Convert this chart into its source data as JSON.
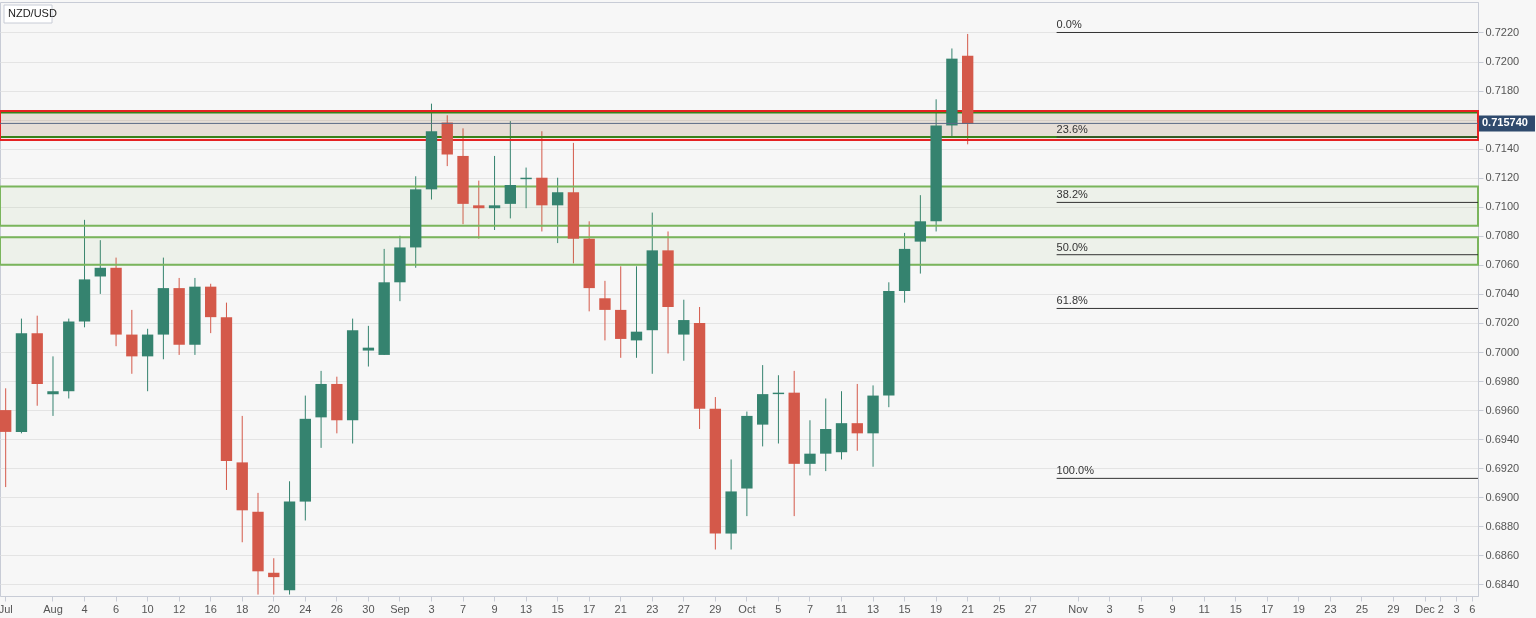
{
  "chart_data": {
    "type": "candlestick",
    "title": "NZD/USD",
    "categories": [
      "Jul",
      null,
      null,
      "Aug",
      null,
      "4",
      null,
      "6",
      null,
      "10",
      null,
      "12",
      null,
      "16",
      null,
      "18",
      null,
      "20",
      null,
      "24",
      null,
      "26",
      null,
      "30",
      null,
      "Sep",
      null,
      "3",
      null,
      "7",
      null,
      "9",
      null,
      "13",
      null,
      "15",
      null,
      "17",
      null,
      "21",
      null,
      "23",
      null,
      "27",
      null,
      "29",
      null,
      "Oct",
      null,
      "5",
      null,
      "7",
      null,
      "11",
      null,
      "13",
      null,
      "15",
      null,
      "19",
      null,
      "21",
      null,
      "25",
      null,
      "27",
      null,
      null,
      "Nov",
      null,
      "3",
      null,
      "5",
      null,
      "9",
      null,
      "11",
      null,
      "15",
      null,
      "17",
      null,
      "19",
      null,
      "23",
      null,
      "25",
      null,
      "29",
      null,
      "Dec",
      "2",
      "3",
      "6"
    ],
    "ohlc": [
      [
        0.696,
        0.6975,
        0.6907,
        0.6945
      ],
      [
        0.6945,
        0.7023,
        0.6944,
        0.7013
      ],
      [
        0.7013,
        0.7025,
        0.6963,
        0.6978
      ],
      [
        0.6971,
        0.6997,
        0.6956,
        0.6973
      ],
      [
        0.6973,
        0.7023,
        0.6968,
        0.7021
      ],
      [
        0.7021,
        0.7091,
        0.7017,
        0.705
      ],
      [
        0.7052,
        0.7077,
        0.704,
        0.7058
      ],
      [
        0.7058,
        0.7065,
        0.7004,
        0.7012
      ],
      [
        0.7012,
        0.7029,
        0.6985,
        0.6997
      ],
      [
        0.6997,
        0.7016,
        0.6973,
        0.7012
      ],
      [
        0.7012,
        0.7065,
        0.6995,
        0.7044
      ],
      [
        0.7044,
        0.7051,
        0.6998,
        0.7005
      ],
      [
        0.7005,
        0.7051,
        0.6998,
        0.7045
      ],
      [
        0.7045,
        0.7047,
        0.7013,
        0.7024
      ],
      [
        0.7024,
        0.7034,
        0.6905,
        0.6925
      ],
      [
        0.6924,
        0.6956,
        0.6869,
        0.6891
      ],
      [
        0.689,
        0.6903,
        0.6833,
        0.6849
      ],
      [
        0.6848,
        0.6858,
        0.6833,
        0.6845
      ],
      [
        0.6836,
        0.6911,
        0.6833,
        0.6897
      ],
      [
        0.6897,
        0.697,
        0.6884,
        0.6954
      ],
      [
        0.6955,
        0.6987,
        0.6934,
        0.6978
      ],
      [
        0.6978,
        0.6983,
        0.6944,
        0.6953
      ],
      [
        0.6953,
        0.7023,
        0.6937,
        0.7015
      ],
      [
        0.7001,
        0.7018,
        0.699,
        0.7003
      ],
      [
        0.6998,
        0.7071,
        0.6998,
        0.7048
      ],
      [
        0.7048,
        0.708,
        0.7035,
        0.7072
      ],
      [
        0.7072,
        0.7121,
        0.7058,
        0.7112
      ],
      [
        0.7112,
        0.7171,
        0.7105,
        0.7152
      ],
      [
        0.7158,
        0.7163,
        0.7128,
        0.7136
      ],
      [
        0.7135,
        0.7154,
        0.7088,
        0.7102
      ],
      [
        0.7101,
        0.7118,
        0.7078,
        0.7099
      ],
      [
        0.7099,
        0.7135,
        0.7084,
        0.7101
      ],
      [
        0.7102,
        0.7159,
        0.7092,
        0.7115
      ],
      [
        0.7119,
        0.7127,
        0.7099,
        0.712
      ],
      [
        0.712,
        0.7152,
        0.7083,
        0.7101
      ],
      [
        0.7101,
        0.712,
        0.7075,
        0.711
      ],
      [
        0.711,
        0.7144,
        0.7061,
        0.7078
      ],
      [
        0.7078,
        0.709,
        0.7028,
        0.7044
      ],
      [
        0.7037,
        0.7049,
        0.7008,
        0.7029
      ],
      [
        0.7029,
        0.7059,
        0.6996,
        0.7009
      ],
      [
        0.7008,
        0.7059,
        0.6996,
        0.7014
      ],
      [
        0.7015,
        0.7096,
        0.6985,
        0.707
      ],
      [
        0.707,
        0.7083,
        0.6999,
        0.7031
      ],
      [
        0.7012,
        0.7036,
        0.6994,
        0.7022
      ],
      [
        0.702,
        0.7031,
        0.6947,
        0.6961
      ],
      [
        0.6961,
        0.6969,
        0.6864,
        0.6875
      ],
      [
        0.6875,
        0.6926,
        0.6864,
        0.6904
      ],
      [
        0.6906,
        0.6959,
        0.6887,
        0.6956
      ],
      [
        0.695,
        0.6991,
        0.6935,
        0.6971
      ],
      [
        0.6971,
        0.6984,
        0.6937,
        0.6972
      ],
      [
        0.6972,
        0.6987,
        0.6887,
        0.6923
      ],
      [
        0.6923,
        0.6953,
        0.6915,
        0.693
      ],
      [
        0.693,
        0.6968,
        0.6918,
        0.6947
      ],
      [
        0.6931,
        0.6973,
        0.6926,
        0.6951
      ],
      [
        0.6951,
        0.6978,
        0.6932,
        0.6944
      ],
      [
        0.6944,
        0.6977,
        0.6921,
        0.697
      ],
      [
        0.697,
        0.7048,
        0.6962,
        0.7042
      ],
      [
        0.7042,
        0.7082,
        0.7034,
        0.7071
      ],
      [
        0.7076,
        0.7108,
        0.7054,
        0.709
      ],
      [
        0.709,
        0.7174,
        0.7083,
        0.7156
      ],
      [
        0.7156,
        0.7209,
        0.7148,
        0.7202
      ],
      [
        0.7204,
        0.7219,
        0.7143,
        0.7157
      ],
      null,
      null,
      null,
      null,
      null,
      null,
      null,
      null,
      null,
      null,
      null,
      null,
      null,
      null,
      null,
      null,
      null,
      null,
      null,
      null,
      null,
      null,
      null,
      null,
      null,
      null,
      null,
      null,
      null,
      null,
      null,
      null
    ],
    "colors": [
      "#d4594a",
      "#35836f",
      "#d4594a",
      "#35836f",
      "#35836f",
      "#35836f",
      "#35836f",
      "#d4594a",
      "#d4594a",
      "#35836f",
      "#35836f",
      "#d4594a",
      "#35836f",
      "#d4594a",
      "#d4594a",
      "#d4594a",
      "#d4594a",
      "#d4594a",
      "#35836f",
      "#35836f",
      "#35836f",
      "#d4594a",
      "#35836f",
      "#35836f",
      "#35836f",
      "#35836f",
      "#35836f",
      "#35836f",
      "#d4594a",
      "#d4594a",
      "#d4594a",
      "#35836f",
      "#35836f",
      "#35836f",
      "#d4594a",
      "#35836f",
      "#d4594a",
      "#d4594a",
      "#d4594a",
      "#d4594a",
      "#35836f",
      "#35836f",
      "#d4594a",
      "#35836f",
      "#d4594a",
      "#d4594a",
      "#35836f",
      "#35836f",
      "#35836f",
      "#35836f",
      "#d4594a",
      "#35836f",
      "#35836f",
      "#35836f",
      "#d4594a",
      "#35836f",
      "#35836f",
      "#35836f",
      "#35836f",
      "#35836f",
      "#35836f",
      "#d4594a",
      null,
      null,
      null,
      null,
      null,
      null,
      null,
      null,
      null,
      null,
      null,
      null,
      null,
      null,
      null,
      null,
      null,
      null,
      null,
      null,
      null,
      null,
      null,
      null,
      null,
      null,
      null,
      null,
      null,
      null,
      null,
      null
    ],
    "ylim": [
      0.6832,
      0.7241
    ],
    "yticks": [
      {
        "value": 0.684,
        "label": "0.6840"
      },
      {
        "value": 0.686,
        "label": "0.6860"
      },
      {
        "value": 0.688,
        "label": "0.6880"
      },
      {
        "value": 0.69,
        "label": "0.6900"
      },
      {
        "value": 0.692,
        "label": "0.6920"
      },
      {
        "value": 0.694,
        "label": "0.6940"
      },
      {
        "value": 0.696,
        "label": "0.6960"
      },
      {
        "value": 0.698,
        "label": "0.6980"
      },
      {
        "value": 0.7,
        "label": "0.7000"
      },
      {
        "value": 0.702,
        "label": "0.7020"
      },
      {
        "value": 0.704,
        "label": "0.7040"
      },
      {
        "value": 0.706,
        "label": "0.7060"
      },
      {
        "value": 0.708,
        "label": "0.7080"
      },
      {
        "value": 0.71,
        "label": "0.7100"
      },
      {
        "value": 0.712,
        "label": "0.7120"
      },
      {
        "value": 0.714,
        "label": "0.7140"
      },
      {
        "value": 0.716,
        "label": null
      },
      {
        "value": 0.718,
        "label": "0.7180"
      },
      {
        "value": 0.72,
        "label": "0.7200"
      },
      {
        "value": 0.722,
        "label": "0.7220"
      }
    ],
    "ref_lines": [
      {
        "axis": "y",
        "value": 0.71574,
        "label": "0.715740",
        "color": "#5b6b86"
      },
      {
        "axis": "y",
        "value": 0.722,
        "color": "#333333"
      },
      {
        "axis": "y",
        "value": 0.7148,
        "color": "#333333"
      },
      {
        "axis": "y",
        "value": 0.7103,
        "color": "#333333"
      },
      {
        "axis": "y",
        "value": 0.7067,
        "color": "#333333"
      },
      {
        "axis": "y",
        "value": 0.703,
        "color": "#333333"
      },
      {
        "axis": "y",
        "value": 0.6913,
        "color": "#333333"
      }
    ],
    "annotations": [
      {
        "text": "0.0%",
        "y": 0.722
      },
      {
        "text": "23.6%",
        "y": 0.7148
      },
      {
        "text": "38.2%",
        "y": 0.7103
      },
      {
        "text": "50.0%",
        "y": 0.7067
      },
      {
        "text": "61.8%",
        "y": 0.703
      },
      {
        "text": "100.0%",
        "y": 0.6913
      }
    ],
    "bands": [
      {
        "axis": "y",
        "from": 0.7148,
        "to": 0.7165,
        "color": "#2a8a1a"
      },
      {
        "axis": "y",
        "from": 0.7087,
        "to": 0.7114,
        "color": "#7ab55c"
      },
      {
        "axis": "y",
        "from": 0.706,
        "to": 0.7079,
        "color": "#7ab55c"
      },
      {
        "axis": "y",
        "from": 0.7146,
        "to": 0.7166,
        "color": "#e52222"
      }
    ],
    "grid": "y"
  }
}
